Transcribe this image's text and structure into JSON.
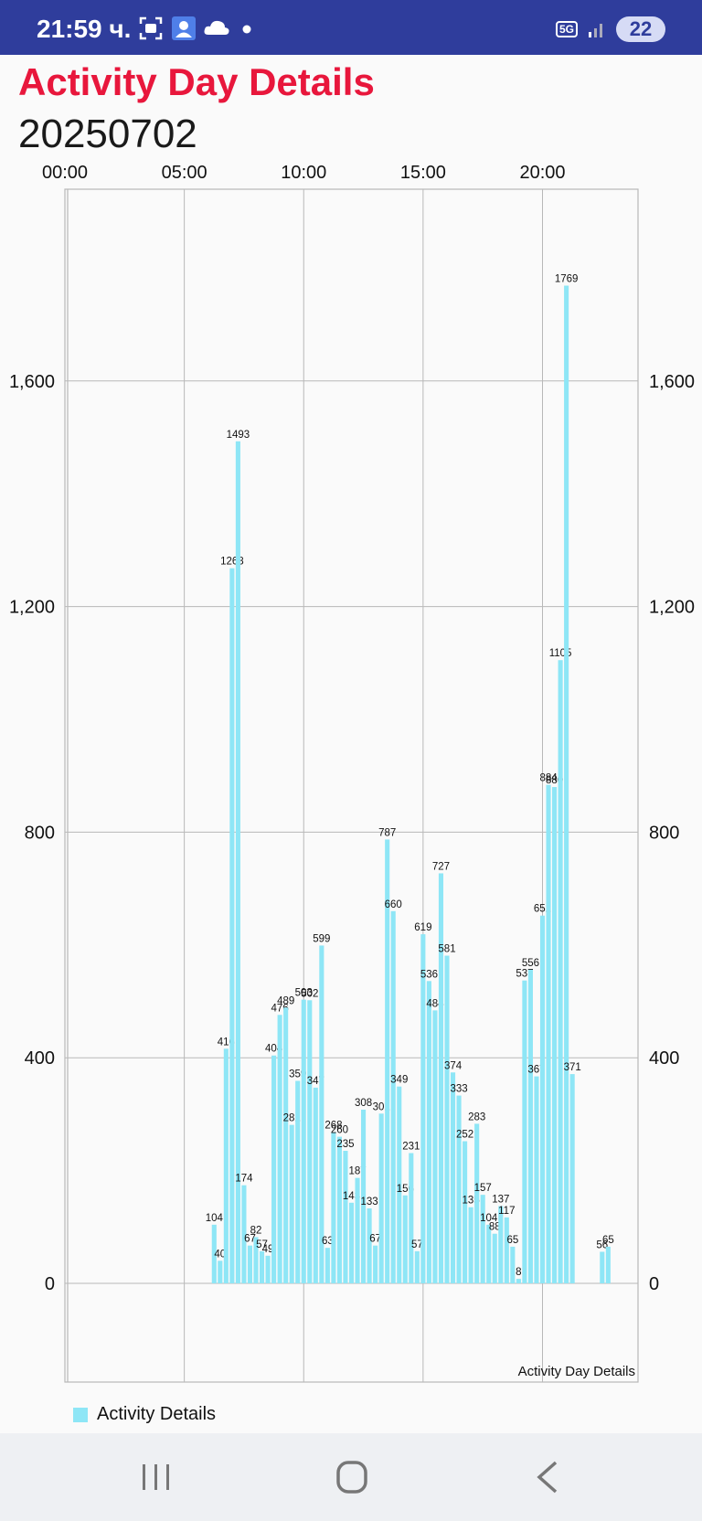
{
  "status_bar": {
    "time": "21:59 ч.",
    "network": "5G",
    "battery": "22",
    "icons": [
      "screenshot-icon",
      "account-icon",
      "cloud-icon",
      "dot-icon",
      "signal-icon"
    ]
  },
  "header": {
    "title": "Activity Day Details",
    "date": "20250702"
  },
  "colors": {
    "title": "#e8173c",
    "bar": "#8ee6f6",
    "status_bar": "#2f3d9c",
    "grid": "#b8b8b8"
  },
  "legend": {
    "label": "Activity Details"
  },
  "chart_data": {
    "type": "bar",
    "description_label": "Activity Day Details",
    "x_tick_labels": [
      "00:00",
      "05:00",
      "10:00",
      "15:00",
      "20:00"
    ],
    "x_ticks_hours": [
      0,
      5,
      10,
      15,
      20
    ],
    "x_range_hours": [
      0,
      24
    ],
    "y_tick_labels": [
      "0",
      "400",
      "800",
      "1,200",
      "1,600"
    ],
    "y_ticks": [
      0,
      400,
      800,
      1200,
      1600
    ],
    "ylim": [
      -175,
      1940
    ],
    "grid": true,
    "legend_position": "bottom-left",
    "series": [
      {
        "name": "Activity Details",
        "x_hours": [
          6.25,
          6.5,
          6.75,
          7.0,
          7.25,
          7.5,
          7.75,
          8.0,
          8.25,
          8.5,
          8.75,
          9.0,
          9.25,
          9.5,
          9.75,
          10.0,
          10.25,
          10.5,
          10.75,
          11.0,
          11.25,
          11.5,
          11.75,
          12.0,
          12.25,
          12.5,
          12.75,
          13.0,
          13.25,
          13.5,
          13.75,
          14.0,
          14.25,
          14.5,
          14.75,
          15.0,
          15.25,
          15.5,
          15.75,
          16.0,
          16.25,
          16.5,
          16.75,
          17.0,
          17.25,
          17.5,
          17.75,
          18.0,
          18.25,
          18.5,
          18.75,
          19.0,
          19.25,
          19.5,
          19.75,
          20.0,
          20.25,
          20.5,
          20.75,
          21.0,
          21.25,
          22.5,
          22.75
        ],
        "values": [
          104,
          40,
          416,
          1268,
          1493,
          174,
          67,
          82,
          57,
          49,
          404,
          476,
          489,
          281,
          359,
          503,
          502,
          347,
          599,
          63,
          268,
          260,
          235,
          143,
          187,
          308,
          133,
          67,
          301,
          787,
          660,
          349,
          156,
          231,
          57,
          619,
          536,
          484,
          727,
          581,
          374,
          333,
          252,
          135,
          283,
          157,
          104,
          88,
          137,
          117,
          65,
          8,
          537,
          556,
          367,
          652,
          884,
          880,
          1105,
          1769,
          371,
          56,
          65
        ]
      }
    ]
  },
  "nav_bar": {
    "buttons": [
      "recents-button",
      "home-button",
      "back-button"
    ]
  }
}
